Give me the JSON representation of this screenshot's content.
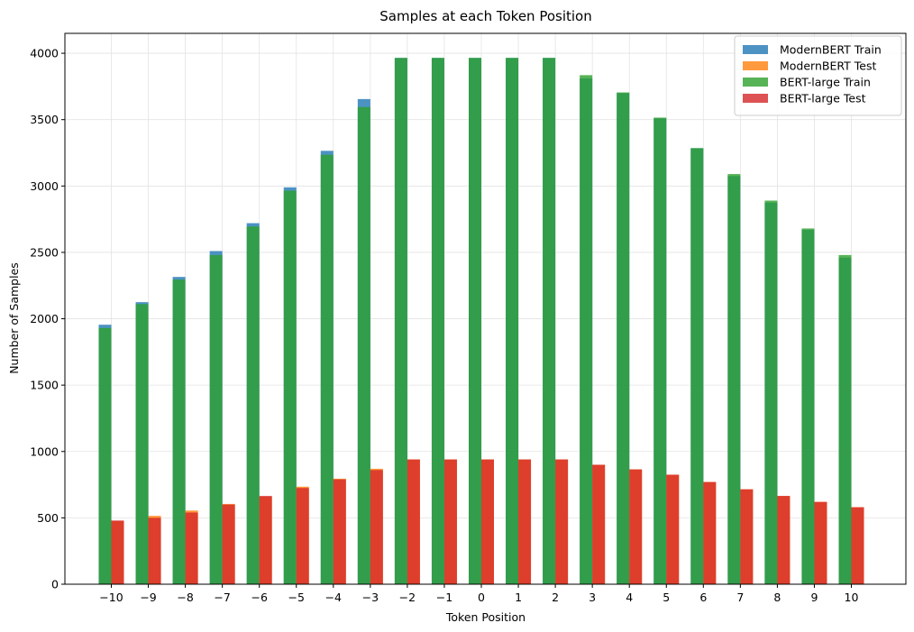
{
  "chart_data": {
    "type": "bar",
    "title": "Samples at each Token Position",
    "xlabel": "Token Position",
    "ylabel": "Number of Samples",
    "categories": [
      "−10",
      "−9",
      "−8",
      "−7",
      "−6",
      "−5",
      "−4",
      "−3",
      "−2",
      "−1",
      "0",
      "1",
      "2",
      "3",
      "4",
      "5",
      "6",
      "7",
      "8",
      "9",
      "10"
    ],
    "ylim": [
      0,
      4150
    ],
    "yticks": [
      0,
      500,
      1000,
      1500,
      2000,
      2500,
      3000,
      3500,
      4000
    ],
    "grid": true,
    "legend_position": "top-right",
    "series": [
      {
        "name": "ModernBERT Train",
        "color": "#1f77b4",
        "group": "train",
        "values": [
          1955,
          2125,
          2315,
          2510,
          2720,
          2990,
          3265,
          3655,
          3965,
          3965,
          3965,
          3965,
          3965,
          3810,
          3700,
          3510,
          3285,
          3075,
          2875,
          2670,
          2460
        ]
      },
      {
        "name": "ModernBERT Test",
        "color": "#ff7f0e",
        "group": "test",
        "values": [
          475,
          515,
          555,
          605,
          660,
          735,
          795,
          870,
          940,
          940,
          940,
          940,
          940,
          900,
          865,
          825,
          770,
          715,
          665,
          620,
          580
        ]
      },
      {
        "name": "BERT-large Train",
        "color": "#2ca02c",
        "group": "train",
        "values": [
          1930,
          2110,
          2295,
          2480,
          2695,
          2965,
          3235,
          3595,
          3965,
          3965,
          3965,
          3965,
          3965,
          3835,
          3705,
          3515,
          3285,
          3090,
          2890,
          2680,
          2480
        ]
      },
      {
        "name": "BERT-large Test",
        "color": "#d62728",
        "group": "test",
        "values": [
          480,
          500,
          540,
          600,
          665,
          725,
          790,
          860,
          940,
          940,
          940,
          940,
          940,
          900,
          865,
          825,
          770,
          715,
          665,
          620,
          580
        ]
      }
    ]
  }
}
